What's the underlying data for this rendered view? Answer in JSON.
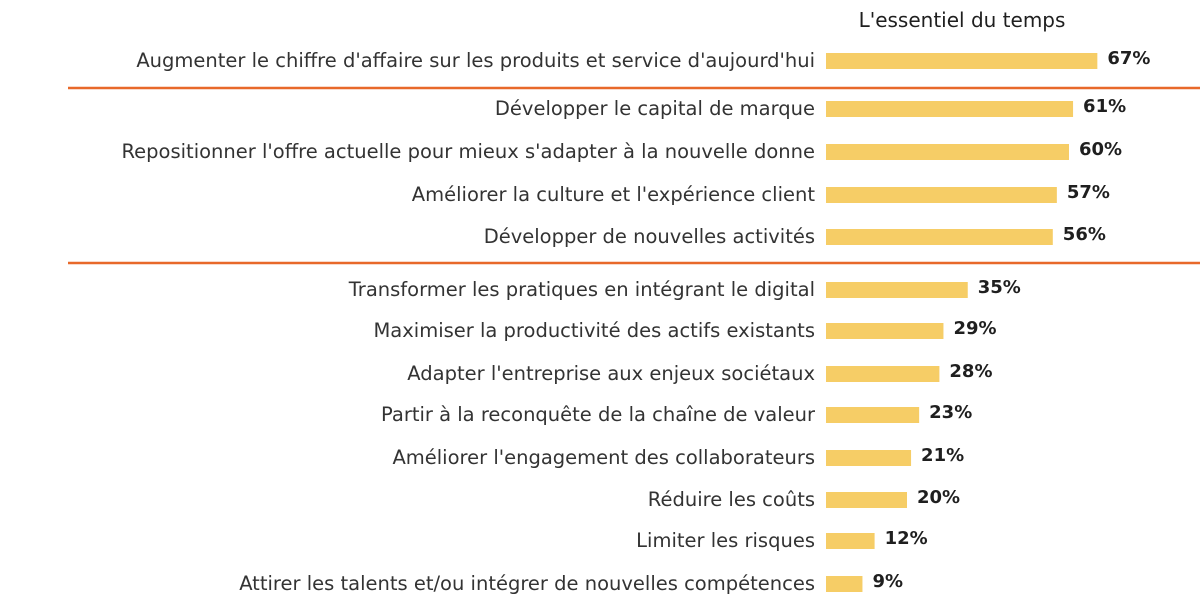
{
  "chart_data": {
    "type": "bar",
    "orientation": "horizontal",
    "title": "L'essentiel du temps",
    "xlabel": "",
    "ylabel": "",
    "xlim": [
      0,
      100
    ],
    "grid": false,
    "unit": "%",
    "categories": [
      "Augmenter le chiffre d'affaire sur les produits et service d'aujourd'hui",
      "Développer le capital de marque",
      "Repositionner l'offre actuelle pour mieux  s'adapter à la nouvelle donne",
      "Améliorer la culture et l'expérience client",
      "Développer de nouvelles activités",
      "Transformer les pratiques en intégrant le digital",
      "Maximiser la productivité des actifs existants",
      "Adapter l'entreprise aux enjeux sociétaux",
      "Partir à la reconquête de la chaîne de valeur",
      "Améliorer l'engagement des collaborateurs",
      "Réduire les coûts",
      "Limiter les risques",
      "Attirer les talents et/ou intégrer de nouvelles compétences"
    ],
    "values": [
      67,
      61,
      60,
      57,
      56,
      35,
      29,
      28,
      23,
      21,
      20,
      12,
      9
    ],
    "value_labels": [
      "67%",
      "61%",
      "60%",
      "57%",
      "56%",
      "35%",
      "29%",
      "28%",
      "23%",
      "21%",
      "20%",
      "12%",
      "9%"
    ],
    "group_separators_after_index": [
      0,
      4
    ],
    "colors": {
      "bar": "#F6CD66",
      "separator": "#E8692A",
      "text": "#333333"
    }
  }
}
